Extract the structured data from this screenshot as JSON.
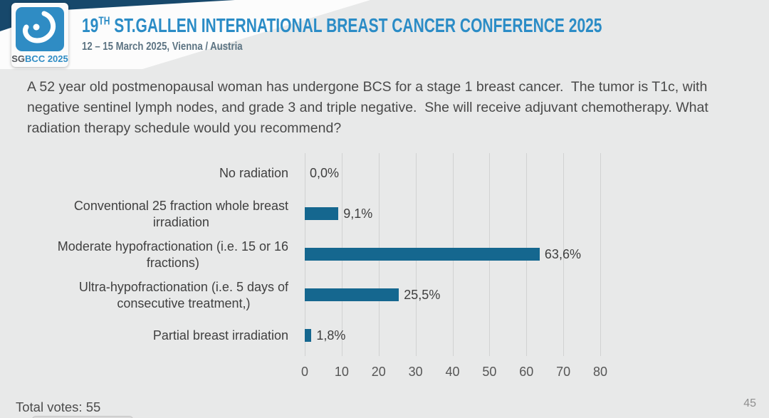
{
  "header": {
    "logo": {
      "sg": "SG",
      "rest": "BCC 2025"
    },
    "title_prefix": "19",
    "title_sup": "TH",
    "title_rest": " ST.GALLEN INTERNATIONAL BREAST CANCER CONFERENCE 2025",
    "subtitle": "12 – 15 March 2025, Vienna / Austria"
  },
  "question": "A 52 year old postmenopausal woman has undergone BCS for a stage 1 breast cancer.  The tumor is T1c, with negative sentinel lymph nodes, and grade 3 and triple negative.  She will receive adjuvant chemotherapy. What radiation therapy schedule would you recommend?",
  "chart_data": {
    "type": "bar",
    "orientation": "horizontal",
    "title": "",
    "xlabel": "",
    "ylabel": "",
    "categories": [
      "No radiation",
      "Conventional 25 fraction whole breast\nirradiation",
      "Moderate hypofractionation (i.e. 15 or 16\nfractions)",
      "Ultra-hypofractionation (i.e. 5 days of\nconsecutive treatment,)",
      "Partial breast irradiation"
    ],
    "values": [
      0.0,
      9.1,
      63.6,
      25.5,
      1.8
    ],
    "value_labels": [
      "0,0%",
      "9,1%",
      "63,6%",
      "25,5%",
      "1,8%"
    ],
    "xlim": [
      0,
      80
    ],
    "x_ticks": [
      0,
      10,
      20,
      30,
      40,
      50,
      60,
      70,
      80
    ],
    "grid": true,
    "legend": false,
    "bar_color": "#15678f"
  },
  "footer": {
    "total_votes": "Total votes: 55",
    "page_number": "45"
  }
}
